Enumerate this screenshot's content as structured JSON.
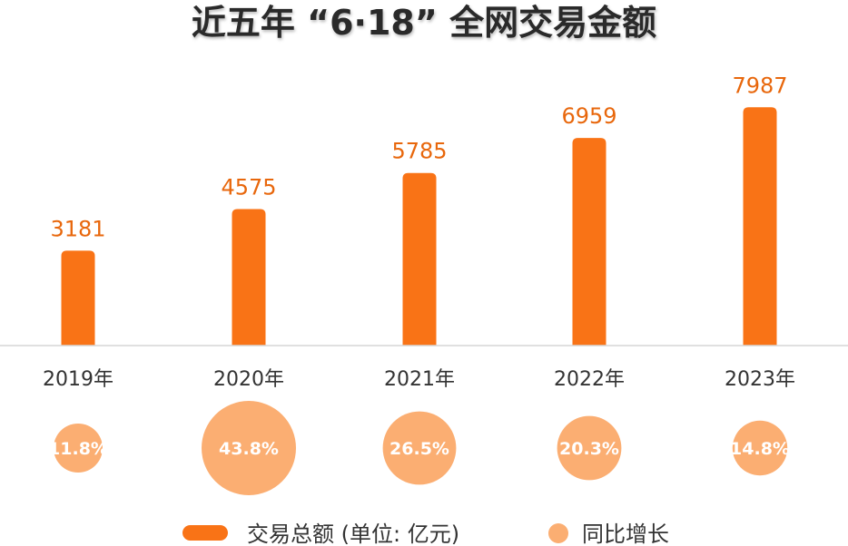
{
  "chart_data": {
    "type": "bar",
    "title": "近五年 “6·18” 全网交易金额",
    "categories": [
      "2019年",
      "2020年",
      "2021年",
      "2022年",
      "2023年"
    ],
    "series": [
      {
        "name": "交易总额 (单位: 亿元)",
        "values": [
          3181,
          4575,
          5785,
          6959,
          7987
        ],
        "labels": [
          "3181",
          "4575",
          "5785",
          "6959",
          "7987"
        ],
        "color": "#f97316"
      },
      {
        "name": "同比增长",
        "values": [
          11.8,
          43.8,
          26.5,
          20.3,
          14.8
        ],
        "labels": [
          "11.8%",
          "43.8%",
          "26.5%",
          "20.3%",
          "14.8%"
        ],
        "color": "#fbae72"
      }
    ],
    "ylim": [
      0,
      8500
    ],
    "grid": false,
    "legend": "bottom"
  }
}
